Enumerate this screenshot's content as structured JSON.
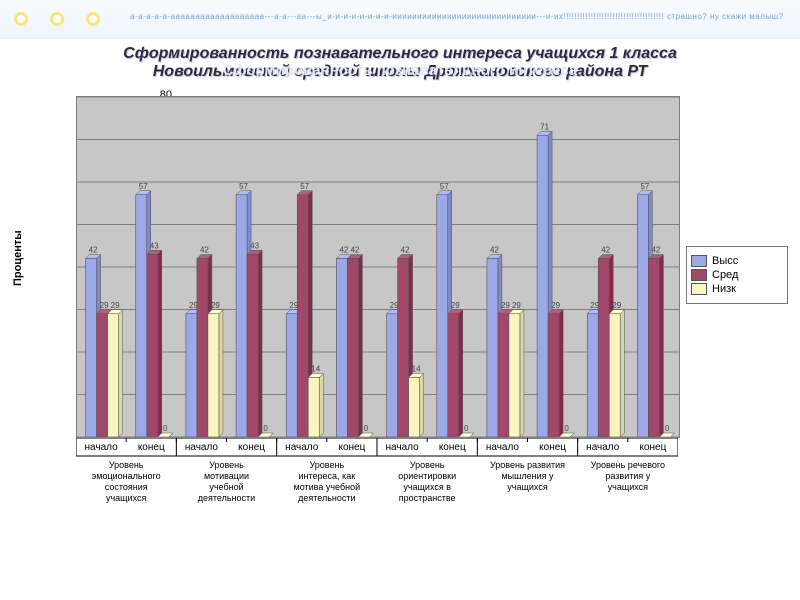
{
  "banner_text": "а-а-а-а-а-ааааааааааааааааааа---а-а---аа---ы_и-и-и-и-и-и-и-и-иииииииииииииииииииииииииииии---и-их!!!!!!!!!!!!!!!!!!!!!!!!!!!!!!!!!!!!! страшно? ну скажи малыш?",
  "title_line1": "Сформированность  познавательного  интереса   учащихся  1  класса",
  "title_line2": "Новоильмовской  средней  школы  Дрожжановского района РТ",
  "shadow_title": "Сформированность познавательного интереса",
  "yaxis_label": "Проценты",
  "legend": {
    "items": [
      {
        "label": "Высс",
        "color": "#9da8e8"
      },
      {
        "label": "Сред",
        "color": "#a1486a"
      },
      {
        "label": "Низк",
        "color": "#f9f6c0"
      }
    ]
  },
  "chart": {
    "type": "grouped-bar",
    "background": "#c7c7c7",
    "grid_color": "#7f7f7f",
    "ylim": [
      0,
      80
    ],
    "ytick_step": 10,
    "bar_border": "#555555",
    "series": [
      {
        "name": "Высокий",
        "color": "#9da8e8"
      },
      {
        "name": "Средний",
        "color": "#a1486a"
      },
      {
        "name": "Низкий",
        "color": "#f9f6c0"
      }
    ],
    "groups": [
      {
        "label": "Уровень\nэмоционального\nсостояния\nучащихся",
        "sub": [
          {
            "label": "начало",
            "v": [
              42,
              29,
              29
            ]
          },
          {
            "label": "конец",
            "v": [
              57,
              43,
              0
            ]
          }
        ]
      },
      {
        "label": "Уровень\nмотивации\nучебной\nдеятельности",
        "sub": [
          {
            "label": "начало",
            "v": [
              29,
              42,
              29
            ]
          },
          {
            "label": "конец",
            "v": [
              57,
              43,
              0
            ]
          }
        ]
      },
      {
        "label": "Уровень\nинтереса, как\nмотива учебной\nдеятельности",
        "sub": [
          {
            "label": "начало",
            "v": [
              29,
              57,
              14
            ]
          },
          {
            "label": "конец",
            "v": [
              42,
              42,
              0
            ]
          }
        ]
      },
      {
        "label": "Уровень\nориентировки\nучащихся в\nпространстве",
        "sub": [
          {
            "label": "начало",
            "v": [
              29,
              42,
              14
            ]
          },
          {
            "label": "конец",
            "v": [
              57,
              29,
              0
            ]
          }
        ]
      },
      {
        "label": "Уровень развития\nмышления у\nучащихся",
        "sub": [
          {
            "label": "начало",
            "v": [
              42,
              29,
              29
            ]
          },
          {
            "label": "конец",
            "v": [
              71,
              29,
              0
            ]
          }
        ]
      },
      {
        "label": "Уровень речевого\nразвития у\nучащихся",
        "sub": [
          {
            "label": "начало",
            "v": [
              29,
              42,
              29
            ]
          },
          {
            "label": "конец",
            "v": [
              57,
              42,
              0
            ]
          }
        ]
      }
    ]
  }
}
